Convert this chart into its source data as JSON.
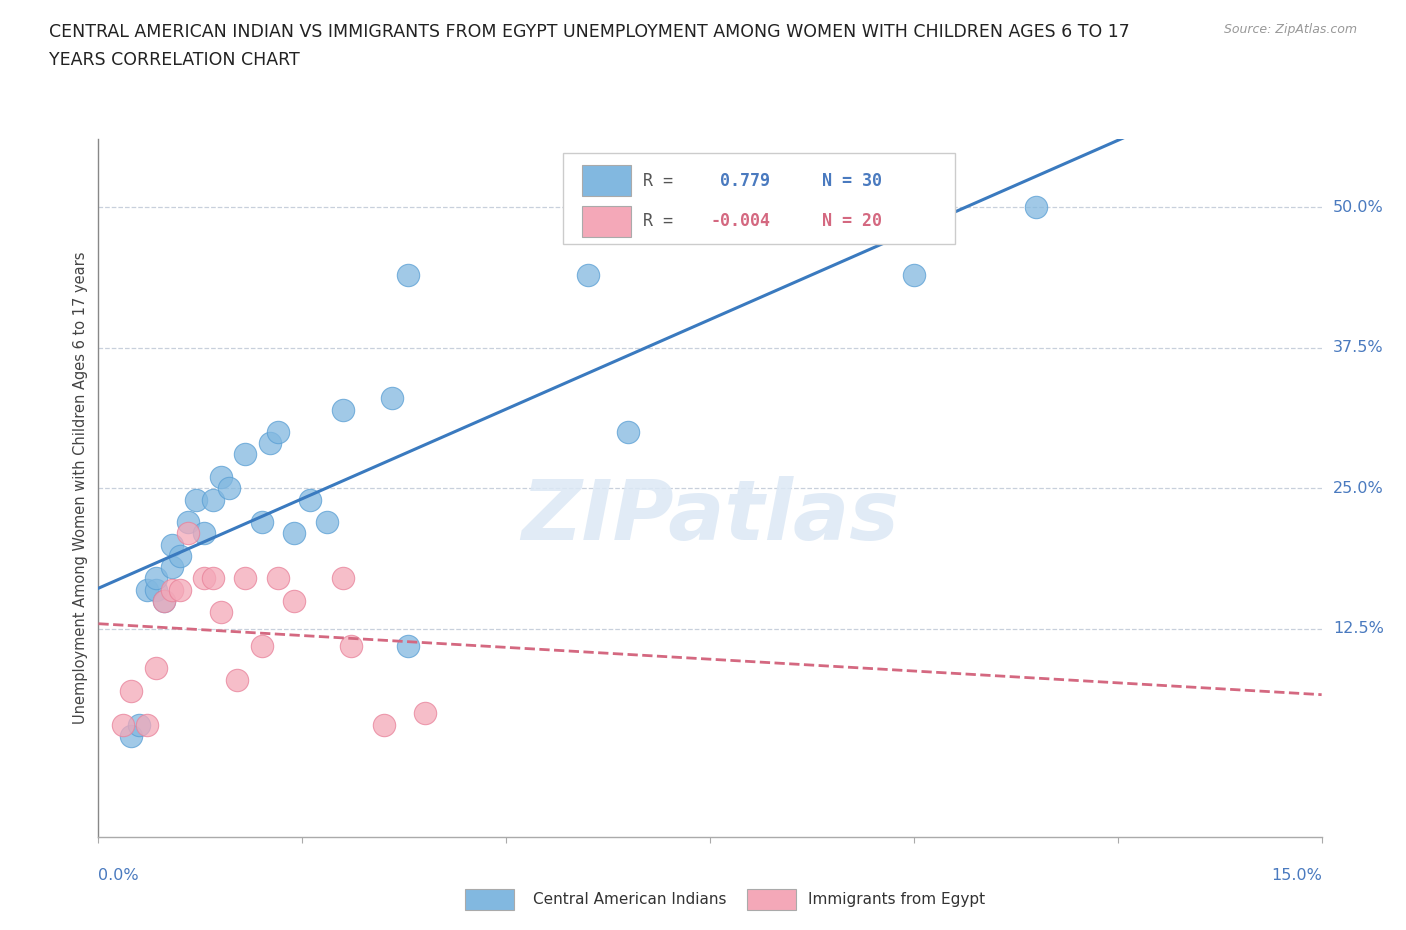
{
  "title_line1": "CENTRAL AMERICAN INDIAN VS IMMIGRANTS FROM EGYPT UNEMPLOYMENT AMONG WOMEN WITH CHILDREN AGES 6 TO 17",
  "title_line2": "YEARS CORRELATION CHART",
  "source": "Source: ZipAtlas.com",
  "ylabel": "Unemployment Among Women with Children Ages 6 to 17 years",
  "xlim": [
    0.0,
    0.15
  ],
  "ylim": [
    -0.06,
    0.56
  ],
  "yticks": [
    0.0,
    0.125,
    0.25,
    0.375,
    0.5
  ],
  "ytick_labels": [
    "",
    "12.5%",
    "25.0%",
    "37.5%",
    "50.0%"
  ],
  "xtick_positions": [
    0.0,
    0.025,
    0.05,
    0.075,
    0.1,
    0.125,
    0.15
  ],
  "color_blue": "#82b8e0",
  "color_blue_edge": "#5a9fd4",
  "color_pink": "#f4a8b8",
  "color_pink_edge": "#e8829a",
  "trend_blue": "#3a7abf",
  "trend_pink": "#d46880",
  "grid_color": "#c8d0dc",
  "watermark": "ZIPatlas",
  "watermark_color": "#dce8f5",
  "legend_r1_label": "R = ",
  "legend_r1_value": " 0.779",
  "legend_r1_n": " N = 30",
  "legend_r2_label": "R = ",
  "legend_r2_value": "-0.004",
  "legend_r2_n": " N = 20",
  "blue_x": [
    0.004,
    0.005,
    0.006,
    0.007,
    0.007,
    0.008,
    0.009,
    0.009,
    0.01,
    0.011,
    0.012,
    0.013,
    0.014,
    0.015,
    0.016,
    0.018,
    0.02,
    0.021,
    0.022,
    0.024,
    0.026,
    0.028,
    0.03,
    0.036,
    0.038,
    0.06,
    0.065,
    0.1,
    0.115,
    0.038
  ],
  "blue_y": [
    0.03,
    0.04,
    0.16,
    0.16,
    0.17,
    0.15,
    0.18,
    0.2,
    0.19,
    0.22,
    0.24,
    0.21,
    0.24,
    0.26,
    0.25,
    0.28,
    0.22,
    0.29,
    0.3,
    0.21,
    0.24,
    0.22,
    0.32,
    0.33,
    0.44,
    0.44,
    0.3,
    0.44,
    0.5,
    0.11
  ],
  "pink_x": [
    0.003,
    0.004,
    0.006,
    0.007,
    0.008,
    0.009,
    0.01,
    0.011,
    0.013,
    0.014,
    0.015,
    0.017,
    0.018,
    0.02,
    0.022,
    0.024,
    0.03,
    0.031,
    0.035,
    0.04
  ],
  "pink_y": [
    0.04,
    0.07,
    0.04,
    0.09,
    0.15,
    0.16,
    0.16,
    0.21,
    0.17,
    0.17,
    0.14,
    0.08,
    0.17,
    0.11,
    0.17,
    0.15,
    0.17,
    0.11,
    0.04,
    0.05
  ],
  "bottom_legend_label1": "Central American Indians",
  "bottom_legend_label2": "Immigrants from Egypt"
}
